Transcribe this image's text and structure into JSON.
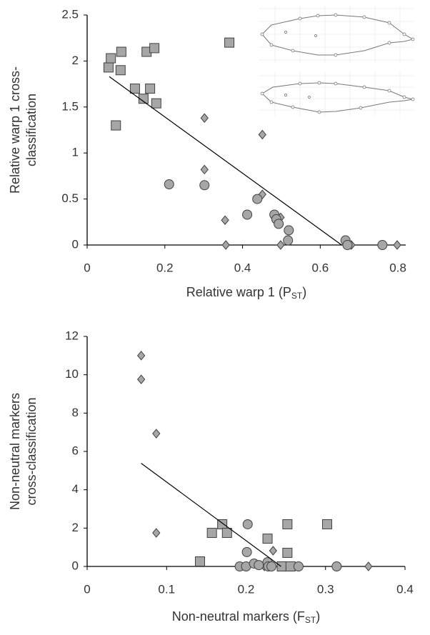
{
  "chart_data": [
    {
      "type": "scatter",
      "xlabel": [
        "Relative warp 1 (P",
        "ST",
        ")"
      ],
      "ylabel": [
        "Relative warp 1 cross-",
        "classification"
      ],
      "xlim": [
        0,
        0.82
      ],
      "ylim": [
        0,
        2.5
      ],
      "xticks": [
        0,
        0.2,
        0.4,
        0.6,
        0.8
      ],
      "yticks": [
        0,
        0.5,
        1,
        1.5,
        2,
        2.5
      ],
      "series": [
        {
          "marker": "square",
          "color": "#a6a6a6",
          "x": [
            0.055,
            0.061,
            0.088,
            0.086,
            0.074,
            0.123,
            0.145,
            0.153,
            0.162,
            0.173,
            0.178,
            0.366
          ],
          "values": [
            1.93,
            2.03,
            2.1,
            1.9,
            1.3,
            1.7,
            1.59,
            2.1,
            1.7,
            2.14,
            1.54,
            2.2
          ]
        },
        {
          "marker": "diamond",
          "color": "#a6a6a6",
          "x": [
            0.302,
            0.302,
            0.451,
            0.355,
            0.357,
            0.451,
            0.498,
            0.498,
            0.68,
            0.798
          ],
          "values": [
            1.38,
            0.82,
            1.2,
            0.27,
            0,
            0.55,
            0.3,
            0,
            0,
            0
          ]
        },
        {
          "marker": "circle",
          "color": "#a6a6a6",
          "x": [
            0.211,
            0.302,
            0.438,
            0.412,
            0.482,
            0.487,
            0.493,
            0.519,
            0.517,
            0.665,
            0.67,
            0.76
          ],
          "values": [
            0.66,
            0.65,
            0.5,
            0.33,
            0.33,
            0.28,
            0.23,
            0.16,
            0.05,
            0.05,
            0,
            0
          ]
        }
      ],
      "trendline": {
        "x": [
          0.057,
          0.655
        ],
        "y": [
          1.83,
          0
        ]
      }
    },
    {
      "type": "scatter",
      "xlabel": [
        "Non-neutral markers (F",
        "ST",
        ")"
      ],
      "ylabel": [
        "Non-neutral markers",
        "cross-classification"
      ],
      "xlim": [
        0,
        0.4
      ],
      "ylim": [
        0,
        12
      ],
      "xticks": [
        0,
        0.1,
        0.2,
        0.3,
        0.4
      ],
      "yticks": [
        0,
        2,
        4,
        6,
        8,
        10,
        12
      ],
      "series": [
        {
          "marker": "diamond",
          "color": "#a6a6a6",
          "x": [
            0.068,
            0.068,
            0.087,
            0.087,
            0.234,
            0.223,
            0.354
          ],
          "values": [
            11,
            9.76,
            6.93,
            1.75,
            0.82,
            0,
            0
          ]
        },
        {
          "marker": "square",
          "color": "#a6a6a6",
          "x": [
            0.142,
            0.157,
            0.17,
            0.176,
            0.227,
            0.252,
            0.252,
            0.302,
            0.245,
            0.256
          ],
          "values": [
            0.26,
            1.75,
            2.2,
            1.75,
            1.45,
            2.2,
            0.71,
            2.2,
            0,
            0
          ]
        },
        {
          "marker": "circle",
          "color": "#a6a6a6",
          "x": [
            0.202,
            0.201,
            0.192,
            0.2,
            0.21,
            0.216,
            0.227,
            0.228,
            0.232,
            0.266,
            0.314
          ],
          "values": [
            2.2,
            0.75,
            0,
            0,
            0.15,
            0.07,
            0.22,
            0,
            0,
            0,
            0
          ]
        }
      ],
      "trendline": {
        "x": [
          0.068,
          0.244
        ],
        "y": [
          5.38,
          0
        ]
      }
    }
  ]
}
